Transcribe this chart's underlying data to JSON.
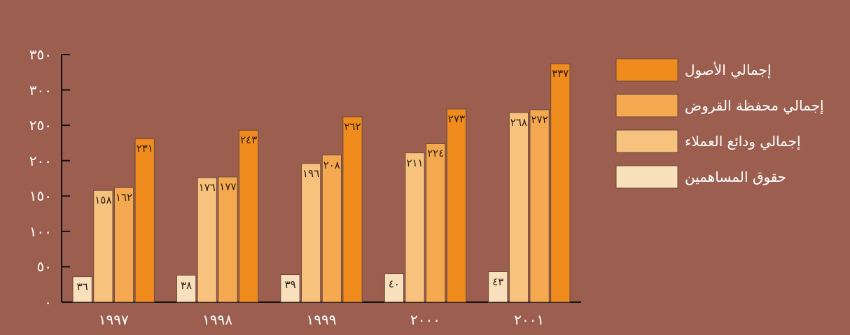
{
  "chart_data": {
    "type": "bar",
    "categories": [
      "١٩٩٧",
      "١٩٩٨",
      "١٩٩٩",
      "٢٠٠٠",
      "٢٠٠١"
    ],
    "series": [
      {
        "name": "حقوق المساهمين",
        "color": "#f8e0bc",
        "values": [
          36,
          38,
          39,
          40,
          43
        ],
        "value_labels": [
          "٣٦",
          "٣٨",
          "٣٩",
          "٤٠",
          "٤٣"
        ]
      },
      {
        "name": "إجمالي ودائع العملاء",
        "color": "#f6c27e",
        "values": [
          158,
          176,
          196,
          211,
          268
        ],
        "value_labels": [
          "١٥٨",
          "١٧٦",
          "١٩٦",
          "٢١١",
          "٢٦٨"
        ]
      },
      {
        "name": "إجمالي محفظة القروض",
        "color": "#f4a950",
        "values": [
          162,
          177,
          208,
          224,
          272
        ],
        "value_labels": [
          "١٦٢",
          "١٧٧",
          "٢٠٨",
          "٢٢٤",
          "٢٧٢"
        ]
      },
      {
        "name": "إجمالي الأصول",
        "color": "#f08c1e",
        "values": [
          231,
          243,
          262,
          273,
          337
        ],
        "value_labels": [
          "٢٣١",
          "٢٤٣",
          "٢٦٢",
          "٢٧٣",
          "٣٣٧"
        ]
      }
    ],
    "ylim": [
      0,
      350
    ],
    "yticks": [
      {
        "value": 0,
        "label": "٠"
      },
      {
        "value": 50,
        "label": "٥٠"
      },
      {
        "value": 100,
        "label": "١٠٠"
      },
      {
        "value": 150,
        "label": "١٥٠"
      },
      {
        "value": 200,
        "label": "٢٠٠"
      },
      {
        "value": 250,
        "label": "٢٥٠"
      },
      {
        "value": 300,
        "label": "٣٠٠"
      },
      {
        "value": 350,
        "label": "٣٥٠"
      }
    ],
    "legend": "right"
  }
}
